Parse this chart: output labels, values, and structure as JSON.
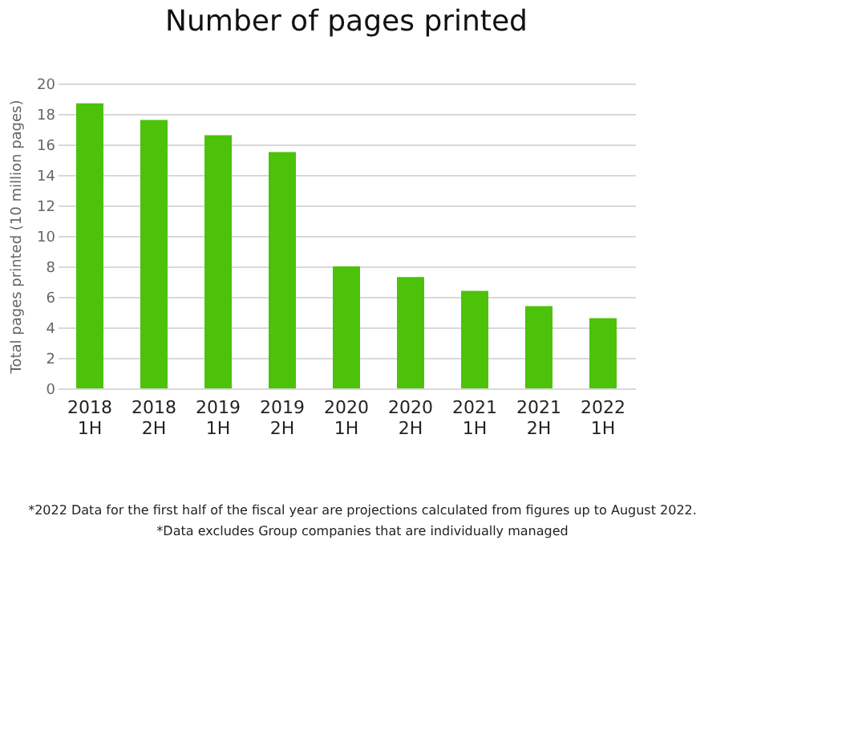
{
  "chart_data": {
    "type": "bar",
    "title": "Number of pages printed",
    "ylabel": "Total pages printed (10 million pages)",
    "categories": [
      "2018 1H",
      "2018 2H",
      "2019 1H",
      "2019 2H",
      "2020 1H",
      "2020 2H",
      "2021 1H",
      "2021 2H",
      "2022 1H"
    ],
    "values": [
      18.7,
      17.6,
      16.6,
      15.5,
      8.0,
      7.3,
      6.4,
      5.4,
      4.6
    ],
    "color": "#4cc20a",
    "ylim": [
      0,
      20
    ],
    "yticks": [
      0,
      2,
      4,
      6,
      8,
      10,
      12,
      14,
      16,
      18,
      20
    ],
    "grid": "y",
    "annotations": [
      "*2022 Data for the first half of the fiscal year are projections calculated from figures up to August 2022.",
      "*Data excludes Group companies that are individually managed"
    ]
  }
}
